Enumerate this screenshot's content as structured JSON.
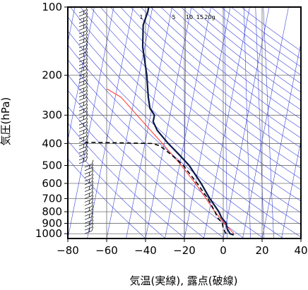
{
  "chart_data": {
    "type": "line",
    "subtype": "skew-T log-P thermodynamic diagram",
    "xlabel": "気温(実線), 露点(破線)",
    "ylabel": "気圧(hPa)",
    "xlim": [
      -80,
      40
    ],
    "ylim": [
      1050,
      100
    ],
    "y_scale": "log",
    "x_ticks": [
      -80,
      -60,
      -40,
      -20,
      0,
      20,
      40
    ],
    "x_tick_labels": [
      "−80",
      "−60",
      "−40",
      "−20",
      "0",
      "20",
      "40"
    ],
    "y_ticks": [
      100,
      200,
      300,
      400,
      500,
      600,
      700,
      800,
      900,
      1000
    ],
    "y_tick_labels": [
      "100",
      "200",
      "300",
      "400",
      "500",
      "600",
      "700",
      "800",
      "900",
      "1000"
    ],
    "mixing_ratio_labels": [
      "1",
      "5",
      "10",
      "15",
      "20g"
    ],
    "series": [
      {
        "role": "temperature",
        "style": "solid",
        "color": "#0a1a4a",
        "points": [
          {
            "p": 1012,
            "t": 5
          },
          {
            "p": 1000,
            "t": 3
          },
          {
            "p": 950,
            "t": 1
          },
          {
            "p": 900,
            "t": 0
          },
          {
            "p": 850,
            "t": -3
          },
          {
            "p": 800,
            "t": -5
          },
          {
            "p": 700,
            "t": -11
          },
          {
            "p": 600,
            "t": -17
          },
          {
            "p": 500,
            "t": -25
          },
          {
            "p": 450,
            "t": -31
          },
          {
            "p": 400,
            "t": -38
          },
          {
            "p": 350,
            "t": -45
          },
          {
            "p": 320,
            "t": -48
          },
          {
            "p": 300,
            "t": -48
          },
          {
            "p": 280,
            "t": -51
          },
          {
            "p": 250,
            "t": -53
          },
          {
            "p": 200,
            "t": -56
          },
          {
            "p": 150,
            "t": -61
          },
          {
            "p": 120,
            "t": -63
          },
          {
            "p": 105,
            "t": -62
          },
          {
            "p": 100,
            "t": -62
          }
        ]
      },
      {
        "role": "dewpoint",
        "style": "dashed",
        "color": "#000000",
        "points": [
          {
            "p": 1000,
            "t": 1
          },
          {
            "p": 950,
            "t": -1
          },
          {
            "p": 900,
            "t": -2
          },
          {
            "p": 850,
            "t": -5
          },
          {
            "p": 800,
            "t": -7
          },
          {
            "p": 700,
            "t": -12
          },
          {
            "p": 600,
            "t": -19
          },
          {
            "p": 500,
            "t": -28
          },
          {
            "p": 450,
            "t": -35
          },
          {
            "p": 410,
            "t": -42
          },
          {
            "p": 400,
            "t": -46
          },
          {
            "p": 398,
            "t": -58
          },
          {
            "p": 395,
            "t": -81
          }
        ]
      },
      {
        "role": "parcel-path",
        "style": "solid",
        "color": "#ff2a2a",
        "points": [
          {
            "p": 1000,
            "t": 5
          },
          {
            "p": 900,
            "t": -1
          },
          {
            "p": 800,
            "t": -7
          },
          {
            "p": 700,
            "t": -13
          },
          {
            "p": 600,
            "t": -20
          },
          {
            "p": 500,
            "t": -29
          },
          {
            "p": 400,
            "t": -41
          },
          {
            "p": 300,
            "t": -57
          },
          {
            "p": 250,
            "t": -67
          },
          {
            "p": 230,
            "t": -75
          }
        ]
      }
    ],
    "grid": {
      "isobars": true,
      "isotherm_spacing": 10,
      "background_line_color": "#3a44d8",
      "grid_color": "#555555"
    }
  }
}
